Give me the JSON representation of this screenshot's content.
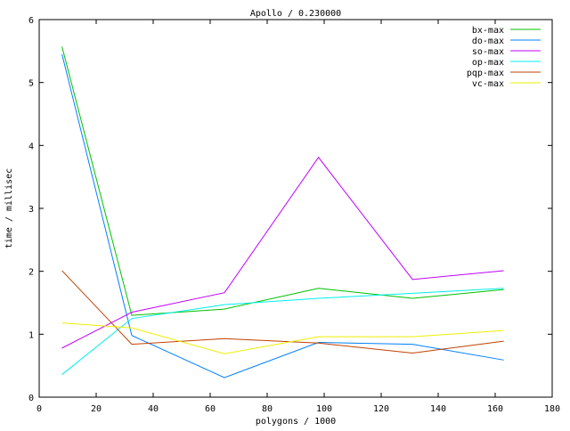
{
  "chart_data": {
    "type": "line",
    "title": "Apollo / 0.230000",
    "xlabel": "polygons / 1000",
    "ylabel": "time / millisec",
    "xlim": [
      0,
      180
    ],
    "ylim": [
      0,
      6
    ],
    "xticks": [
      0,
      20,
      40,
      60,
      80,
      100,
      120,
      140,
      160,
      180
    ],
    "yticks": [
      0,
      1,
      2,
      3,
      4,
      5,
      6
    ],
    "grid": false,
    "legend": "top-right",
    "x": [
      8,
      32.5,
      65,
      98,
      131,
      163
    ],
    "series": [
      {
        "name": "bx-max",
        "color": "#00c000",
        "values": [
          5.57,
          1.3,
          1.4,
          1.73,
          1.57,
          1.71
        ]
      },
      {
        "name": "do-max",
        "color": "#0080ff",
        "values": [
          5.45,
          0.98,
          0.31,
          0.87,
          0.84,
          0.59
        ]
      },
      {
        "name": "so-max",
        "color": "#c000ff",
        "values": [
          0.78,
          1.35,
          1.66,
          3.81,
          1.87,
          2.01
        ]
      },
      {
        "name": "op-max",
        "color": "#00eeee",
        "values": [
          0.36,
          1.25,
          1.47,
          1.57,
          1.65,
          1.73
        ]
      },
      {
        "name": "pqp-max",
        "color": "#c04000",
        "values": [
          2.01,
          0.84,
          0.93,
          0.86,
          0.7,
          0.89
        ]
      },
      {
        "name": "vc-max",
        "color": "#eeee00",
        "values": [
          1.18,
          1.1,
          0.69,
          0.96,
          0.96,
          1.06
        ]
      }
    ]
  }
}
